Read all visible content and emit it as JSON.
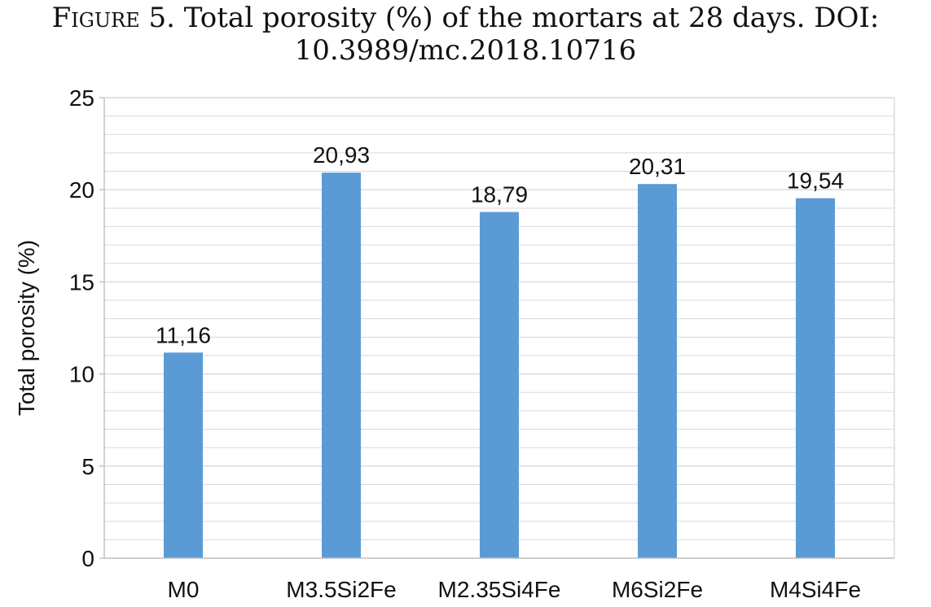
{
  "figure": {
    "label": "Figure 5.",
    "caption_line1": "Total porosity (%) of the mortars at 28 days. DOI:",
    "caption_line2": "10.3989/mc.2018.10716"
  },
  "chart_data": {
    "type": "bar",
    "categories": [
      "M0",
      "M3.5Si2Fe",
      "M2.35Si4Fe",
      "M6Si2Fe",
      "M4Si4Fe"
    ],
    "values": [
      11.16,
      20.93,
      18.79,
      20.31,
      19.54
    ],
    "data_labels": [
      "11,16",
      "20,93",
      "18,79",
      "20,31",
      "19,54"
    ],
    "ylabel": "Total porosity (%)",
    "xlabel": "",
    "ylim": [
      0,
      25
    ],
    "yticks": [
      0,
      5,
      10,
      15,
      20,
      25
    ],
    "minor_grid_step": 1,
    "grid": true,
    "legend": "none",
    "bar_color": "#5b9bd5",
    "grid_color": "#d9d9d9"
  }
}
